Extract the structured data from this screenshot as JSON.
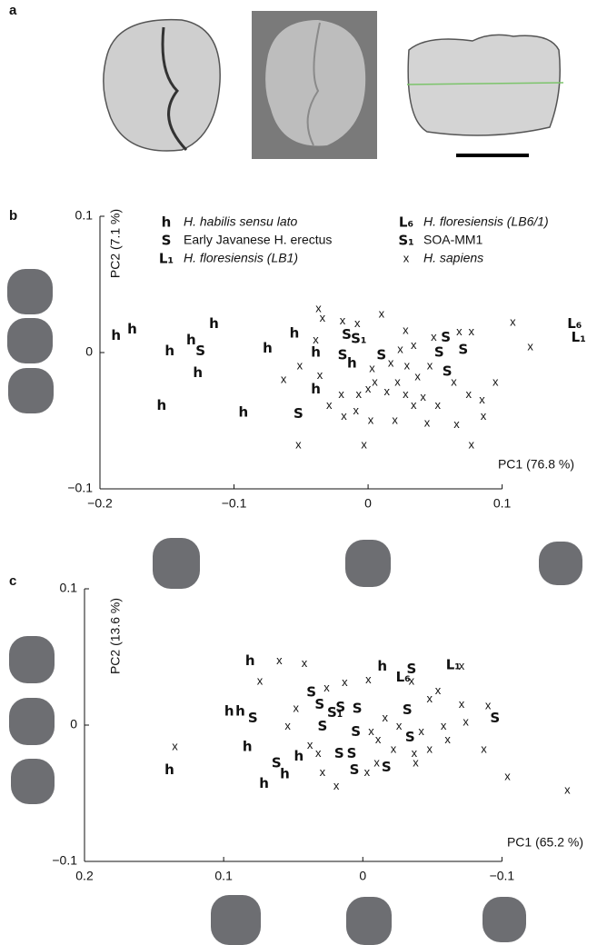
{
  "panel_a": {
    "label": "a"
  },
  "chart_data": [
    {
      "type": "scatter",
      "panel": "b",
      "xlabel": "PC1 (76.8 %)",
      "ylabel": "PC2 (7.1 %)",
      "xlim": [
        -0.2,
        0.166
      ],
      "ylim": [
        -0.1,
        0.1
      ],
      "xticks": [
        {
          "value": -0.2,
          "label": "−0.2"
        },
        {
          "value": -0.1,
          "label": "−0.1"
        },
        0,
        0.1
      ],
      "yticks": [
        0.1,
        0,
        {
          "value": -0.1,
          "label": "−0.1"
        }
      ],
      "legend": true,
      "series": [
        {
          "name": "H. habilis sensu lato",
          "marker": "h",
          "color": "#1f4e9e",
          "x": [
            -0.188,
            -0.176,
            -0.115,
            -0.148,
            -0.132,
            -0.127,
            -0.154,
            -0.093,
            -0.075,
            -0.055,
            -0.039,
            -0.039,
            -0.012
          ],
          "values": [
            0.0125,
            0.017,
            0.021,
            0.001,
            0.009,
            -0.015,
            -0.039,
            -0.044,
            0.003,
            0.014,
            0,
            -0.027,
            -0.008
          ]
        },
        {
          "name": "Early Javanese H. erectus",
          "marker": "S",
          "color": "#5cb83e",
          "x": [
            -0.125,
            -0.052,
            -0.019,
            -0.016,
            0.01,
            0.053,
            0.058,
            0.071,
            0.059
          ],
          "values": [
            0.001,
            -0.045,
            -0.002,
            0.013,
            -0.002,
            0,
            0.011,
            0.002,
            -0.014
          ]
        },
        {
          "name": "H. floresiensis (LB1)",
          "marker": "L₁",
          "color": "#e2302a",
          "x": [
            0.157
          ],
          "values": [
            0.011
          ]
        },
        {
          "name": "H. floresiensis (LB6/1)",
          "marker": "L₆",
          "color": "#e2302a",
          "x": [
            0.154
          ],
          "values": [
            0.021
          ]
        },
        {
          "name": "SOA-MM1",
          "marker": "S₁",
          "color": "#e2302a",
          "x": [
            -0.007
          ],
          "values": [
            0.01
          ]
        },
        {
          "name": "H. sapiens",
          "marker": "x",
          "color": "#8a8a8a",
          "x": [
            -0.037,
            -0.034,
            -0.019,
            -0.039,
            -0.051,
            -0.063,
            -0.036,
            -0.029,
            -0.052,
            -0.018,
            -0.009,
            -0.007,
            0,
            0.005,
            0.014,
            0.022,
            0.028,
            0.034,
            0.041,
            0.052,
            0.064,
            0.075,
            0.085,
            0.086,
            0.077,
            0.095,
            0.044,
            0.02,
            0.002,
            -0.003,
            -0.008,
            0.01,
            0.028,
            0.034,
            0.049,
            0.068,
            0.077,
            0.108,
            0.121,
            0.024,
            0.017,
            0.029,
            0.003,
            0.037,
            0.046,
            -0.02,
            0.066
          ],
          "values": [
            0.032,
            0.025,
            0.023,
            0.009,
            -0.01,
            -0.02,
            -0.017,
            -0.039,
            -0.068,
            -0.047,
            -0.043,
            -0.031,
            -0.027,
            -0.022,
            -0.029,
            -0.022,
            -0.031,
            -0.039,
            -0.033,
            -0.039,
            -0.022,
            -0.031,
            -0.035,
            -0.047,
            -0.068,
            -0.022,
            -0.052,
            -0.05,
            -0.05,
            -0.068,
            0.021,
            0.028,
            0.016,
            0.005,
            0.011,
            0.015,
            0.015,
            0.022,
            0.004,
            0.002,
            -0.008,
            -0.01,
            -0.012,
            -0.018,
            -0.01,
            -0.031,
            -0.053
          ]
        }
      ]
    },
    {
      "type": "scatter",
      "panel": "c",
      "xlabel": "PC1 (65.2 %)",
      "ylabel": "PC2 (13.6 %)",
      "xlim": [
        0.2,
        -0.167
      ],
      "ylim": [
        -0.1,
        0.1
      ],
      "xticks": [
        0.2,
        0.1,
        0,
        {
          "value": -0.1,
          "label": "−0.1"
        }
      ],
      "yticks": [
        0.1,
        0,
        {
          "value": -0.1,
          "label": "−0.1"
        }
      ],
      "legend": false,
      "series": [
        {
          "marker": "h",
          "color": "#1f4e9e",
          "x": [
            0.081,
            0.096,
            0.088,
            0.083,
            0.071,
            0.056,
            0.046,
            -0.014,
            0.139
          ],
          "values": [
            0.047,
            0.01,
            0.01,
            -0.016,
            -0.043,
            -0.036,
            -0.023,
            0.043,
            -0.033
          ]
        },
        {
          "marker": "S",
          "color": "#5cb83e",
          "x": [
            0.079,
            0.062,
            0.037,
            0.031,
            0.016,
            0.004,
            0.029,
            0.005,
            0.017,
            0.008,
            0.006,
            -0.017,
            -0.032,
            -0.034,
            -0.035,
            -0.095
          ],
          "values": [
            0.005,
            -0.028,
            0.024,
            0.015,
            0.013,
            0.012,
            -0.001,
            -0.005,
            -0.021,
            -0.021,
            -0.033,
            -0.031,
            0.011,
            -0.009,
            0.041,
            0.005
          ]
        },
        {
          "marker": "L₁",
          "color": "#e2302a",
          "x": [
            -0.065
          ],
          "values": [
            0.044
          ]
        },
        {
          "marker": "L₆",
          "color": "#e2302a",
          "x": [
            -0.029
          ],
          "values": [
            0.035
          ]
        },
        {
          "marker": "S₁",
          "color": "#e2302a",
          "x": [
            0.02
          ],
          "values": [
            0.009
          ]
        },
        {
          "marker": "x",
          "color": "#8a8a8a",
          "x": [
            0.06,
            0.074,
            0.042,
            0.026,
            0.013,
            -0.004,
            -0.035,
            -0.071,
            -0.054,
            -0.048,
            -0.071,
            -0.09,
            -0.074,
            -0.058,
            -0.042,
            -0.026,
            -0.016,
            -0.006,
            -0.011,
            -0.022,
            -0.037,
            -0.048,
            -0.087,
            -0.104,
            -0.147,
            0.038,
            0.032,
            0.029,
            0.019,
            -0.003,
            -0.01,
            0.048,
            0.054,
            0.135,
            -0.061,
            -0.038
          ],
          "values": [
            0.047,
            0.032,
            0.045,
            0.027,
            0.031,
            0.033,
            0.032,
            0.043,
            0.025,
            0.019,
            0.015,
            0.014,
            0.002,
            -0.001,
            -0.005,
            -0.001,
            0.005,
            -0.005,
            -0.011,
            -0.018,
            -0.021,
            -0.018,
            -0.018,
            -0.038,
            -0.048,
            -0.015,
            -0.021,
            -0.035,
            -0.045,
            -0.035,
            -0.028,
            0.012,
            -0.001,
            -0.016,
            -0.011,
            -0.028
          ]
        }
      ]
    }
  ]
}
